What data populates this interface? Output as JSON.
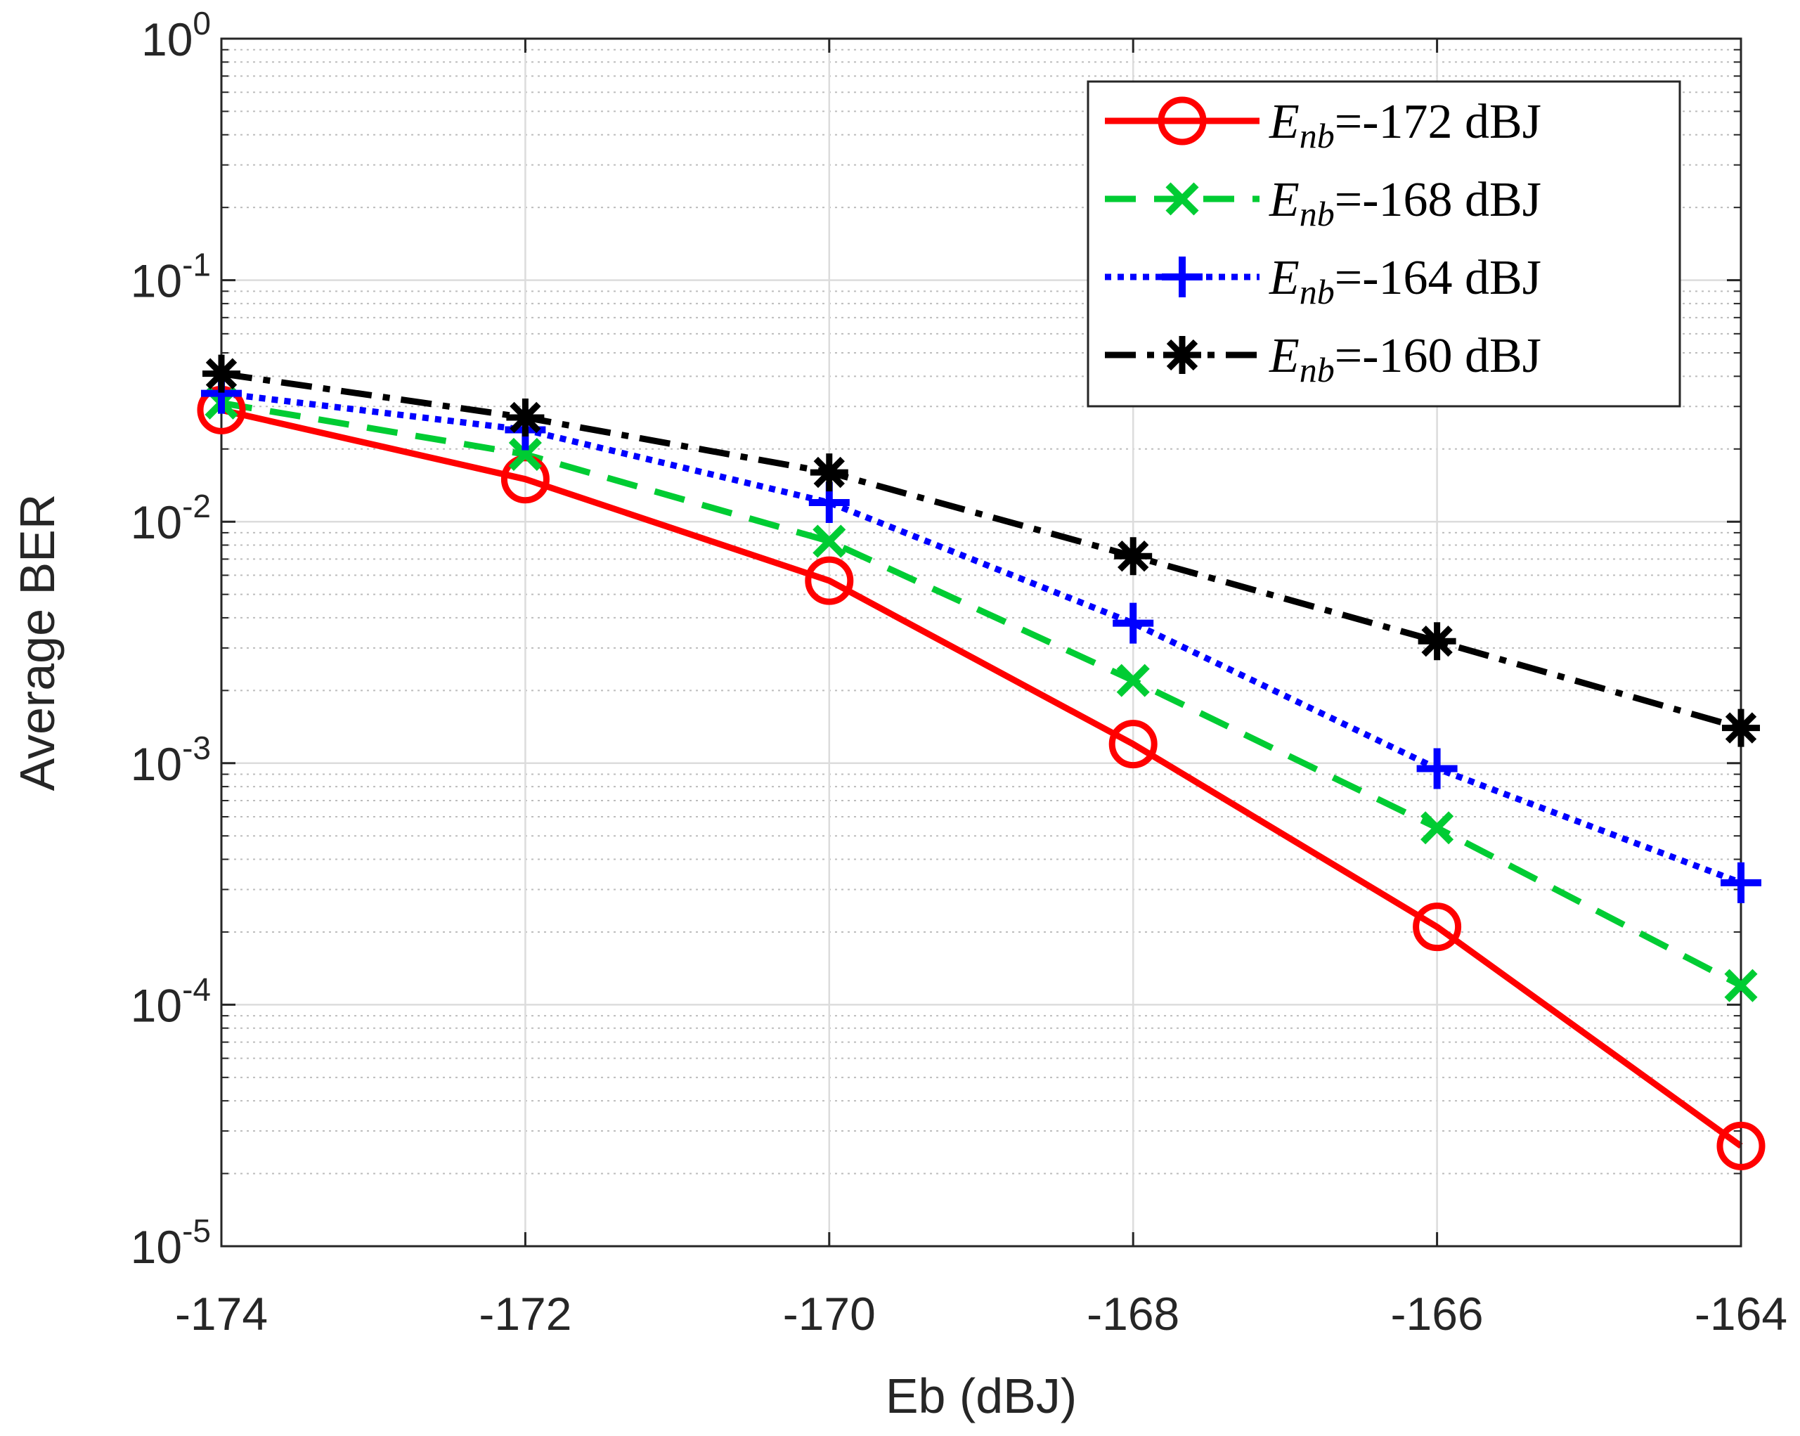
{
  "chart_data": {
    "type": "line",
    "xlabel": "Eb (dBJ)",
    "ylabel": "Average BER",
    "xlim": [
      -174,
      -164
    ],
    "ylim": [
      1e-05,
      1
    ],
    "yscale": "log",
    "grid": true,
    "minor_grid": true,
    "legend_position": "top-right",
    "x": [
      -174,
      -172,
      -170,
      -168,
      -166,
      -164
    ],
    "x_tick_labels": [
      "-174",
      "-172",
      "-170",
      "-168",
      "-166",
      "-164"
    ],
    "y_ticks": [
      {
        "value": 1e-05,
        "exponent": "-5"
      },
      {
        "value": 0.0001,
        "exponent": "-4"
      },
      {
        "value": 0.001,
        "exponent": "-3"
      },
      {
        "value": 0.01,
        "exponent": "-2"
      },
      {
        "value": 0.1,
        "exponent": "-1"
      },
      {
        "value": 1,
        "exponent": "0"
      }
    ],
    "y_tick_base": "10",
    "series": [
      {
        "name": "Enb=-172 dBJ",
        "legend_symbol": "E",
        "legend_subscript": "nb",
        "legend_suffix": "=-172 dBJ",
        "color": "#ff0000",
        "line_style": "solid",
        "marker": "circle",
        "values": [
          0.029,
          0.015,
          0.0057,
          0.0012,
          0.00021,
          2.6e-05
        ]
      },
      {
        "name": "Enb=-168 dBJ",
        "legend_symbol": "E",
        "legend_subscript": "nb",
        "legend_suffix": "=-168 dBJ",
        "color": "#00cc33",
        "line_style": "dashed",
        "marker": "x",
        "values": [
          0.031,
          0.019,
          0.0083,
          0.0022,
          0.00054,
          0.00012
        ]
      },
      {
        "name": "Enb=-164 dBJ",
        "legend_symbol": "E",
        "legend_subscript": "nb",
        "legend_suffix": "=-164 dBJ",
        "color": "#0000ff",
        "line_style": "dotted",
        "marker": "plus",
        "values": [
          0.034,
          0.024,
          0.012,
          0.0038,
          0.00095,
          0.00032
        ]
      },
      {
        "name": "Enb=-160 dBJ",
        "legend_symbol": "E",
        "legend_subscript": "nb",
        "legend_suffix": "=-160 dBJ",
        "color": "#000000",
        "line_style": "dashdot",
        "marker": "asterisk",
        "values": [
          0.041,
          0.027,
          0.016,
          0.0072,
          0.0032,
          0.0014
        ]
      }
    ]
  }
}
